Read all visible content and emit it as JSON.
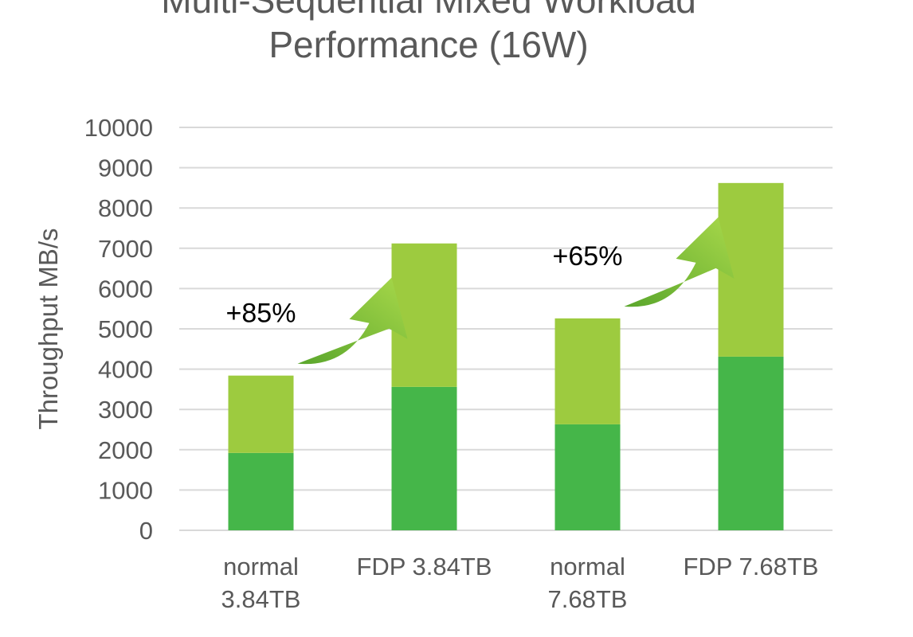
{
  "chart_data": {
    "type": "bar",
    "stacked": true,
    "title_lines": [
      "Multi-Sequential Mixed Workload",
      "Performance (16W)"
    ],
    "ylabel": "Throughput MB/s",
    "xlabel": "",
    "ylim": [
      0,
      10000
    ],
    "yticks": [
      0,
      1000,
      2000,
      3000,
      4000,
      5000,
      6000,
      7000,
      8000,
      9000,
      10000
    ],
    "grid": true,
    "legend": "none",
    "categories": [
      [
        "normal",
        "3.84TB"
      ],
      [
        "FDP 3.84TB"
      ],
      [
        "normal",
        "7.68TB"
      ],
      [
        "FDP 7.68TB"
      ]
    ],
    "series": [
      {
        "values": [
          1920,
          3560,
          2630,
          4310
        ],
        "color": "#45b649"
      },
      {
        "values": [
          1920,
          3560,
          2630,
          4310
        ],
        "color": "#9dcb3f"
      }
    ],
    "annotations": [
      {
        "text": "+85%",
        "between": [
          0,
          1
        ]
      },
      {
        "text": "+65%",
        "between": [
          2,
          3
        ]
      }
    ],
    "colors": {
      "grid": "#d9d9d9",
      "text": "#595959",
      "arrow": "#8dc63f"
    }
  }
}
